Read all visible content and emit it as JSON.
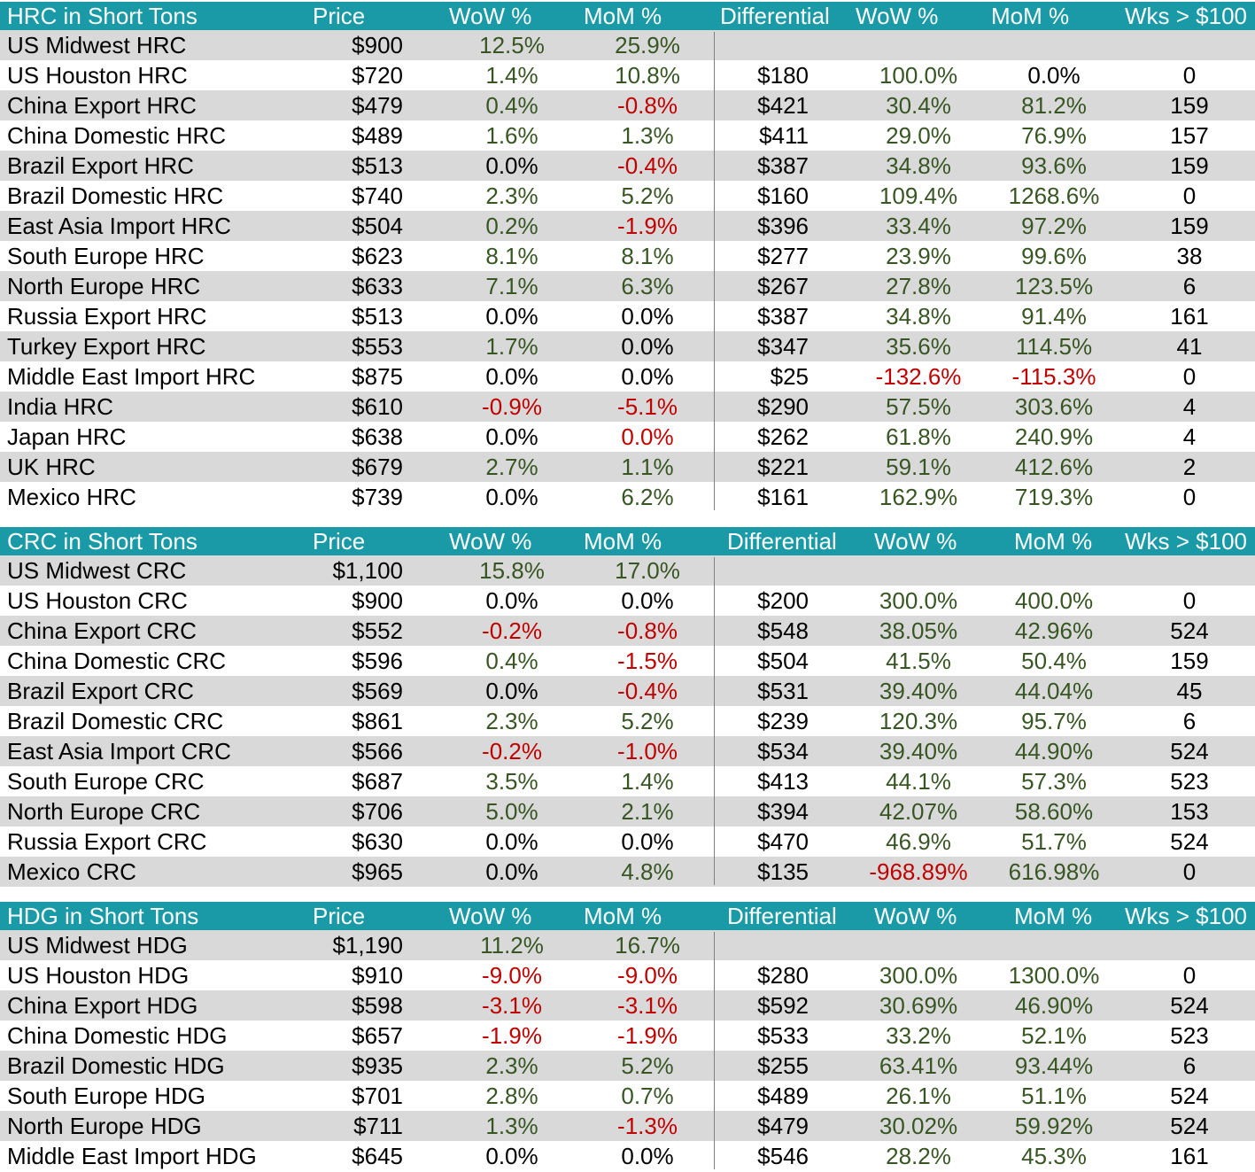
{
  "colors": {
    "header_bg": "#1a9aa6",
    "header_text": "#ffffff",
    "row_shade": "#d9d9d9",
    "positive": "#375623",
    "negative": "#c00000"
  },
  "sections": [
    {
      "header": {
        "name": "HRC in Short Tons",
        "price": "Price",
        "wow": "WoW %",
        "mom": "MoM %",
        "diff": "Differential",
        "wow2": "WoW %",
        "mom2": "MoM %",
        "wks": "Wks > $100"
      },
      "rows": [
        [
          "US Midwest HRC",
          "$900",
          "12.5%",
          "25.9%",
          "",
          "",
          "",
          ""
        ],
        [
          "US Houston HRC",
          "$720",
          "1.4%",
          "10.8%",
          "$180",
          "100.0%",
          "0.0%",
          "0"
        ],
        [
          "China Export HRC",
          "$479",
          "0.4%",
          "-0.8%",
          "$421",
          "30.4%",
          "81.2%",
          "159"
        ],
        [
          "China Domestic HRC",
          "$489",
          "1.6%",
          "1.3%",
          "$411",
          "29.0%",
          "76.9%",
          "157"
        ],
        [
          "Brazil Export HRC",
          "$513",
          "0.0%",
          "-0.4%",
          "$387",
          "34.8%",
          "93.6%",
          "159"
        ],
        [
          "Brazil Domestic HRC",
          "$740",
          "2.3%",
          "5.2%",
          "$160",
          "109.4%",
          "1268.6%",
          "0"
        ],
        [
          "East Asia Import HRC",
          "$504",
          "0.2%",
          "-1.9%",
          "$396",
          "33.4%",
          "97.2%",
          "159"
        ],
        [
          "South Europe HRC",
          "$623",
          "8.1%",
          "8.1%",
          "$277",
          "23.9%",
          "99.6%",
          "38"
        ],
        [
          "North Europe HRC",
          "$633",
          "7.1%",
          "6.3%",
          "$267",
          "27.8%",
          "123.5%",
          "6"
        ],
        [
          "Russia Export HRC",
          "$513",
          "0.0%",
          "0.0%",
          "$387",
          "34.8%",
          "91.4%",
          "161"
        ],
        [
          "Turkey Export HRC",
          "$553",
          "1.7%",
          "0.0%",
          "$347",
          "35.6%",
          "114.5%",
          "41"
        ],
        [
          "Middle East Import HRC",
          "$875",
          "0.0%",
          "0.0%",
          "$25",
          "-132.6%",
          "-115.3%",
          "0"
        ],
        [
          "India HRC",
          "$610",
          "-0.9%",
          "-5.1%",
          "$290",
          "57.5%",
          "303.6%",
          "4"
        ],
        [
          "Japan HRC",
          "$638",
          "0.0%",
          "0.0%",
          "$262",
          "61.8%",
          "240.9%",
          "4"
        ],
        [
          "UK HRC",
          "$679",
          "2.7%",
          "1.1%",
          "$221",
          "59.1%",
          "412.6%",
          "2"
        ],
        [
          "Mexico HRC",
          "$739",
          "0.0%",
          "6.2%",
          "$161",
          "162.9%",
          "719.3%",
          "0"
        ]
      ],
      "colors": [
        [
          "",
          "pos",
          "pos",
          "",
          "",
          "",
          ""
        ],
        [
          "",
          "pos",
          "pos",
          "",
          "pos",
          "neu",
          ""
        ],
        [
          "",
          "pos",
          "neg",
          "",
          "pos",
          "pos",
          ""
        ],
        [
          "",
          "pos",
          "pos",
          "",
          "pos",
          "pos",
          ""
        ],
        [
          "",
          "neu",
          "neg",
          "",
          "pos",
          "pos",
          ""
        ],
        [
          "",
          "pos",
          "pos",
          "",
          "pos",
          "pos",
          ""
        ],
        [
          "",
          "pos",
          "neg",
          "",
          "pos",
          "pos",
          ""
        ],
        [
          "",
          "pos",
          "pos",
          "",
          "pos",
          "pos",
          ""
        ],
        [
          "",
          "pos",
          "pos",
          "",
          "pos",
          "pos",
          ""
        ],
        [
          "",
          "neu",
          "neu",
          "",
          "pos",
          "pos",
          ""
        ],
        [
          "",
          "pos",
          "neu",
          "",
          "pos",
          "pos",
          ""
        ],
        [
          "",
          "neu",
          "neu",
          "",
          "neg",
          "neg",
          ""
        ],
        [
          "",
          "neg",
          "neg",
          "",
          "pos",
          "pos",
          ""
        ],
        [
          "",
          "neu",
          "neg",
          "",
          "pos",
          "pos",
          ""
        ],
        [
          "",
          "pos",
          "pos",
          "",
          "pos",
          "pos",
          ""
        ],
        [
          "",
          "neu",
          "pos",
          "",
          "pos",
          "pos",
          ""
        ]
      ]
    },
    {
      "header": {
        "name": "CRC in Short Tons",
        "price": "Price",
        "wow": "WoW %",
        "mom": "MoM %",
        "diff": "Differential",
        "wow2": "WoW %",
        "mom2": "MoM %",
        "wks": "Wks > $100"
      },
      "rows": [
        [
          "US Midwest CRC",
          "$1,100",
          "15.8%",
          "17.0%",
          "",
          "",
          "",
          ""
        ],
        [
          "US Houston CRC",
          "$900",
          "0.0%",
          "0.0%",
          "$200",
          "300.0%",
          "400.0%",
          "0"
        ],
        [
          "China Export CRC",
          "$552",
          "-0.2%",
          "-0.8%",
          "$548",
          "38.05%",
          "42.96%",
          "524"
        ],
        [
          "China Domestic CRC",
          "$596",
          "0.4%",
          "-1.5%",
          "$504",
          "41.5%",
          "50.4%",
          "159"
        ],
        [
          "Brazil Export CRC",
          "$569",
          "0.0%",
          "-0.4%",
          "$531",
          "39.40%",
          "44.04%",
          "45"
        ],
        [
          "Brazil Domestic CRC",
          "$861",
          "2.3%",
          "5.2%",
          "$239",
          "120.3%",
          "95.7%",
          "6"
        ],
        [
          "East Asia Import CRC",
          "$566",
          "-0.2%",
          "-1.0%",
          "$534",
          "39.40%",
          "44.90%",
          "524"
        ],
        [
          "South Europe CRC",
          "$687",
          "3.5%",
          "1.4%",
          "$413",
          "44.1%",
          "57.3%",
          "523"
        ],
        [
          "North Europe CRC",
          "$706",
          "5.0%",
          "2.1%",
          "$394",
          "42.07%",
          "58.60%",
          "153"
        ],
        [
          "Russia Export CRC",
          "$630",
          "0.0%",
          "0.0%",
          "$470",
          "46.9%",
          "51.7%",
          "524"
        ],
        [
          "Mexico CRC",
          "$965",
          "0.0%",
          "4.8%",
          "$135",
          "-968.89%",
          "616.98%",
          "0"
        ]
      ],
      "colors": [
        [
          "",
          "pos",
          "pos",
          "",
          "",
          "",
          ""
        ],
        [
          "",
          "neu",
          "neu",
          "",
          "pos",
          "pos",
          ""
        ],
        [
          "",
          "neg",
          "neg",
          "",
          "pos",
          "pos",
          ""
        ],
        [
          "",
          "pos",
          "neg",
          "",
          "pos",
          "pos",
          ""
        ],
        [
          "",
          "neu",
          "neg",
          "",
          "pos",
          "pos",
          ""
        ],
        [
          "",
          "pos",
          "pos",
          "",
          "pos",
          "pos",
          ""
        ],
        [
          "",
          "neg",
          "neg",
          "",
          "pos",
          "pos",
          ""
        ],
        [
          "",
          "pos",
          "pos",
          "",
          "pos",
          "pos",
          ""
        ],
        [
          "",
          "pos",
          "pos",
          "",
          "pos",
          "pos",
          ""
        ],
        [
          "",
          "neu",
          "neu",
          "",
          "pos",
          "pos",
          ""
        ],
        [
          "",
          "neu",
          "pos",
          "",
          "neg",
          "pos",
          ""
        ]
      ]
    },
    {
      "header": {
        "name": "HDG in Short Tons",
        "price": "Price",
        "wow": "WoW %",
        "mom": "MoM %",
        "diff": "Differential",
        "wow2": "WoW %",
        "mom2": "MoM %",
        "wks": "Wks > $100"
      },
      "rows": [
        [
          "US Midwest HDG",
          "$1,190",
          "11.2%",
          "16.7%",
          "",
          "",
          "",
          ""
        ],
        [
          "US Houston HDG",
          "$910",
          "-9.0%",
          "-9.0%",
          "$280",
          "300.0%",
          "1300.0%",
          "0"
        ],
        [
          "China Export HDG",
          "$598",
          "-3.1%",
          "-3.1%",
          "$592",
          "30.69%",
          "46.90%",
          "524"
        ],
        [
          "China Domestic HDG",
          "$657",
          "-1.9%",
          "-1.9%",
          "$533",
          "33.2%",
          "52.1%",
          "523"
        ],
        [
          "Brazil Domestic HDG",
          "$935",
          "2.3%",
          "5.2%",
          "$255",
          "63.41%",
          "93.44%",
          "6"
        ],
        [
          "South Europe HDG",
          "$701",
          "2.8%",
          "0.7%",
          "$489",
          "26.1%",
          "51.1%",
          "524"
        ],
        [
          "North Europe HDG",
          "$711",
          "1.3%",
          "-1.3%",
          "$479",
          "30.02%",
          "59.92%",
          "524"
        ],
        [
          "Middle East Import HDG",
          "$645",
          "0.0%",
          "0.0%",
          "$546",
          "28.2%",
          "45.3%",
          "161"
        ]
      ],
      "colors": [
        [
          "",
          "pos",
          "pos",
          "",
          "",
          "",
          ""
        ],
        [
          "",
          "neg",
          "neg",
          "",
          "pos",
          "pos",
          ""
        ],
        [
          "",
          "neg",
          "neg",
          "",
          "pos",
          "pos",
          ""
        ],
        [
          "",
          "neg",
          "neg",
          "",
          "pos",
          "pos",
          ""
        ],
        [
          "",
          "pos",
          "pos",
          "",
          "pos",
          "pos",
          ""
        ],
        [
          "",
          "pos",
          "pos",
          "",
          "pos",
          "pos",
          ""
        ],
        [
          "",
          "pos",
          "neg",
          "",
          "pos",
          "pos",
          ""
        ],
        [
          "",
          "neu",
          "neu",
          "",
          "pos",
          "pos",
          ""
        ]
      ]
    }
  ]
}
